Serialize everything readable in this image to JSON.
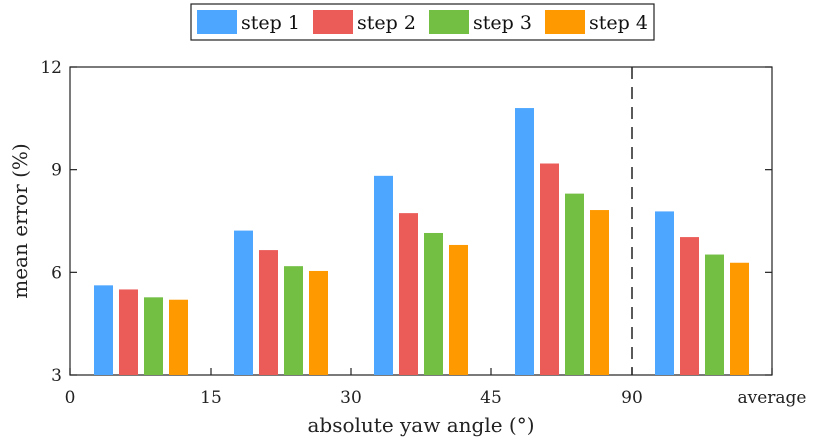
{
  "chart_data": {
    "type": "bar",
    "title": "",
    "xlabel": "absolute yaw angle (°)",
    "ylabel": "mean error (%)",
    "ylim": [
      3,
      12
    ],
    "yticks": [
      "3",
      "6",
      "9",
      "12"
    ],
    "xticks": [
      "0",
      "15",
      "30",
      "45",
      "90",
      "average"
    ],
    "groups": [
      "0–15",
      "15–30",
      "30–45",
      "45–90",
      "average"
    ],
    "series": [
      {
        "name": "step 1",
        "color": "#4da6ff",
        "values": [
          5.62,
          7.22,
          8.82,
          10.8,
          7.78
        ]
      },
      {
        "name": "step 2",
        "color": "#eb5c59",
        "values": [
          5.5,
          6.65,
          7.73,
          9.18,
          7.03
        ]
      },
      {
        "name": "step 3",
        "color": "#72bf44",
        "values": [
          5.27,
          6.18,
          7.15,
          8.3,
          6.52
        ]
      },
      {
        "name": "step 4",
        "color": "#ff9900",
        "values": [
          5.2,
          6.04,
          6.8,
          7.82,
          6.28
        ]
      }
    ],
    "legend_position": "top-center",
    "separator": "dashed line between 90 and average"
  }
}
